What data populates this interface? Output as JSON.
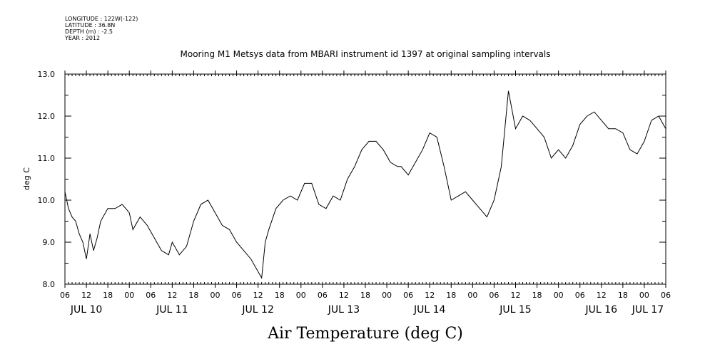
{
  "metadata": [
    "LONGITUDE : 122W(-122)",
    "LATITUDE : 36.8N",
    "DEPTH (m) : -2.5",
    "YEAR : 2012"
  ],
  "chart_data": {
    "type": "line",
    "title": "Mooring M1 Metsys data from MBARI instrument id 1397 at original sampling intervals",
    "xlabel": "Air Temperature (deg C)",
    "ylabel": "deg C",
    "ylim": [
      8.0,
      13.0
    ],
    "yticks": [
      "8.0",
      "9.0",
      "10.0",
      "11.0",
      "12.0",
      "13.0"
    ],
    "xlim": [
      "2012-07-10 06:00",
      "2012-07-17 06:00"
    ],
    "hour_tick_labels": [
      "06",
      "12",
      "18",
      "00",
      "06",
      "12",
      "18",
      "00",
      "06",
      "12",
      "18",
      "00",
      "06",
      "12",
      "18",
      "00",
      "06",
      "12",
      "18",
      "00",
      "06",
      "12",
      "18",
      "00",
      "06",
      "12",
      "18",
      "00",
      "06"
    ],
    "day_labels": [
      "JUL 10",
      "JUL 11",
      "JUL 12",
      "JUL 13",
      "JUL 14",
      "JUL 15",
      "JUL 16",
      "JUL 17"
    ],
    "grid": false,
    "series": [
      {
        "color": "#000000",
        "x": [
          "2012-07-10 06:00",
          "2012-07-10 07:00",
          "2012-07-10 08:00",
          "2012-07-10 09:00",
          "2012-07-10 10:00",
          "2012-07-10 11:00",
          "2012-07-10 12:00",
          "2012-07-10 13:00",
          "2012-07-10 14:00",
          "2012-07-10 15:00",
          "2012-07-10 16:00",
          "2012-07-10 18:00",
          "2012-07-10 20:00",
          "2012-07-10 22:00",
          "2012-07-11 00:00",
          "2012-07-11 01:00",
          "2012-07-11 03:00",
          "2012-07-11 05:00",
          "2012-07-11 07:00",
          "2012-07-11 09:00",
          "2012-07-11 11:00",
          "2012-07-11 12:00",
          "2012-07-11 14:00",
          "2012-07-11 16:00",
          "2012-07-11 18:00",
          "2012-07-11 20:00",
          "2012-07-11 22:00",
          "2012-07-12 00:00",
          "2012-07-12 02:00",
          "2012-07-12 04:00",
          "2012-07-12 06:00",
          "2012-07-12 08:00",
          "2012-07-12 10:00",
          "2012-07-12 12:00",
          "2012-07-12 13:00",
          "2012-07-12 14:00",
          "2012-07-12 15:00",
          "2012-07-12 17:00",
          "2012-07-12 19:00",
          "2012-07-12 21:00",
          "2012-07-12 23:00",
          "2012-07-13 01:00",
          "2012-07-13 03:00",
          "2012-07-13 05:00",
          "2012-07-13 07:00",
          "2012-07-13 09:00",
          "2012-07-13 11:00",
          "2012-07-13 13:00",
          "2012-07-13 15:00",
          "2012-07-13 17:00",
          "2012-07-13 19:00",
          "2012-07-13 21:00",
          "2012-07-13 23:00",
          "2012-07-14 01:00",
          "2012-07-14 03:00",
          "2012-07-14 04:00",
          "2012-07-14 06:00",
          "2012-07-14 08:00",
          "2012-07-14 10:00",
          "2012-07-14 12:00",
          "2012-07-14 14:00",
          "2012-07-14 16:00",
          "2012-07-14 18:00",
          "2012-07-14 20:00",
          "2012-07-14 22:00",
          "2012-07-15 00:00",
          "2012-07-15 02:00",
          "2012-07-15 04:00",
          "2012-07-15 06:00",
          "2012-07-15 08:00",
          "2012-07-15 10:00",
          "2012-07-15 12:00",
          "2012-07-15 14:00",
          "2012-07-15 16:00",
          "2012-07-15 17:00",
          "2012-07-15 18:00",
          "2012-07-15 19:00",
          "2012-07-15 20:00",
          "2012-07-15 22:00",
          "2012-07-16 00:00",
          "2012-07-16 02:00",
          "2012-07-16 04:00",
          "2012-07-16 06:00",
          "2012-07-16 08:00",
          "2012-07-16 10:00",
          "2012-07-16 12:00",
          "2012-07-16 14:00",
          "2012-07-16 16:00",
          "2012-07-16 18:00",
          "2012-07-16 20:00",
          "2012-07-16 22:00",
          "2012-07-17 00:00",
          "2012-07-17 02:00",
          "2012-07-17 04:00",
          "2012-07-17 06:00"
        ],
        "y": [
          10.2,
          9.8,
          9.6,
          9.5,
          9.2,
          9.0,
          8.6,
          9.2,
          8.8,
          9.1,
          9.5,
          9.8,
          9.8,
          9.9,
          9.7,
          9.3,
          9.6,
          9.4,
          9.1,
          8.8,
          8.7,
          9.0,
          8.7,
          8.9,
          9.5,
          9.9,
          10.0,
          9.7,
          9.4,
          9.3,
          9.0,
          8.8,
          8.6,
          8.3,
          8.15,
          9.0,
          9.3,
          9.8,
          10.0,
          10.1,
          10.0,
          10.4,
          10.4,
          9.9,
          9.8,
          10.1,
          10.0,
          10.5,
          10.8,
          11.2,
          11.4,
          11.4,
          11.2,
          10.9,
          10.8,
          10.8,
          10.6,
          10.9,
          11.2,
          11.6,
          11.5,
          10.8,
          10.0,
          10.1,
          10.2,
          10.0,
          9.8,
          9.6,
          10.0,
          10.8,
          12.6,
          11.7,
          12.0,
          11.9,
          11.8,
          11.7,
          11.6,
          11.5,
          11.0,
          11.2,
          11.0,
          11.3,
          11.8,
          12.0,
          12.1,
          11.9,
          11.7,
          11.7,
          11.6,
          11.2,
          11.1,
          11.4,
          11.9,
          12.0,
          11.7
        ]
      }
    ]
  }
}
